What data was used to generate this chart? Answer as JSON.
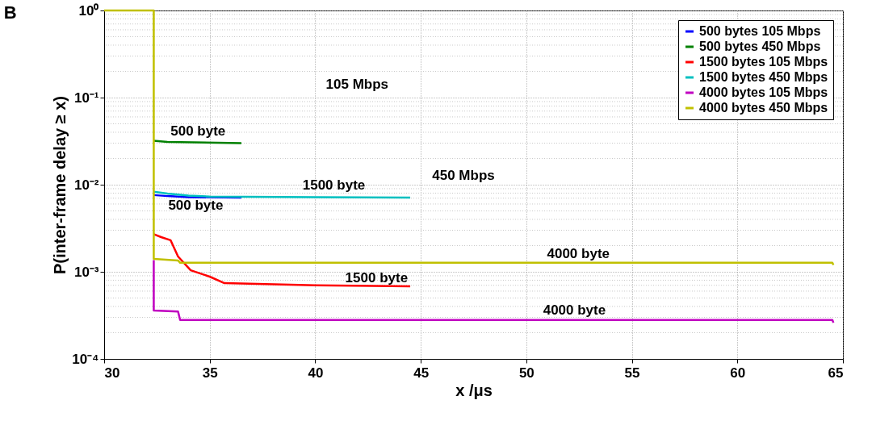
{
  "chart_data": {
    "type": "line",
    "title": "B",
    "xlabel": "x /μs",
    "ylabel": "P(inter-frame delay ≥ x)",
    "log": "y",
    "xlim": [
      30,
      65
    ],
    "xticks": [
      30,
      35,
      40,
      45,
      50,
      55,
      60,
      65
    ],
    "ylim": [
      0.0001,
      1
    ],
    "yticks": [
      {
        "value": 0.0001,
        "label": "10⁻⁴"
      },
      {
        "value": 0.001,
        "label": "10⁻³"
      },
      {
        "value": 0.01,
        "label": "10⁻²"
      },
      {
        "value": 0.1,
        "label": "10⁻¹"
      },
      {
        "value": 1,
        "label": "10⁰"
      }
    ],
    "grid": true,
    "legend": "top right",
    "line_style": "solid",
    "marker": "none",
    "series": [
      {
        "name": "500 bytes 105 Mbps",
        "color": "#0000ff",
        "x": [
          32.35,
          33,
          34,
          36.5
        ],
        "values": [
          0.0076,
          0.0074,
          0.0072,
          0.0071
        ]
      },
      {
        "name": "500 bytes 450 Mbps",
        "color": "#008000",
        "x": [
          32.35,
          33,
          36.5
        ],
        "values": [
          0.032,
          0.031,
          0.03
        ]
      },
      {
        "name": "1500 bytes 105 Mbps",
        "color": "#ff0000",
        "x": [
          32.35,
          32.7,
          33.15,
          33.5,
          34.1,
          35,
          35.7,
          40,
          44.5
        ],
        "values": [
          0.0027,
          0.0025,
          0.0023,
          0.0015,
          0.00104,
          0.00088,
          0.00074,
          0.0007,
          0.00068
        ]
      },
      {
        "name": "1500 bytes 450 Mbps",
        "color": "#00c0c0",
        "x": [
          32.35,
          33,
          34,
          35,
          40,
          44.5
        ],
        "values": [
          0.0083,
          0.0079,
          0.0075,
          0.0073,
          0.0072,
          0.0071
        ]
      },
      {
        "name": "4000 bytes 105 Mbps",
        "color": "#c000c0",
        "x": [
          32.35,
          32.35,
          33.5,
          33.6,
          64.5,
          64.55
        ],
        "values": [
          0.00136,
          0.00036,
          0.00035,
          0.00028,
          0.00028,
          0.00026
        ]
      },
      {
        "name": "4000 bytes 450 Mbps",
        "color": "#c0c000",
        "x": [
          30,
          32.35,
          32.35,
          33.5,
          33.6,
          64.5,
          64.55
        ],
        "values": [
          1,
          1,
          0.00141,
          0.00135,
          0.00127,
          0.00127,
          0.0012
        ]
      }
    ],
    "annotations": [
      "105 Mbps",
      "450 Mbps",
      "500 byte",
      "500 byte",
      "1500 byte",
      "1500 byte",
      "4000 byte",
      "4000 byte"
    ]
  }
}
